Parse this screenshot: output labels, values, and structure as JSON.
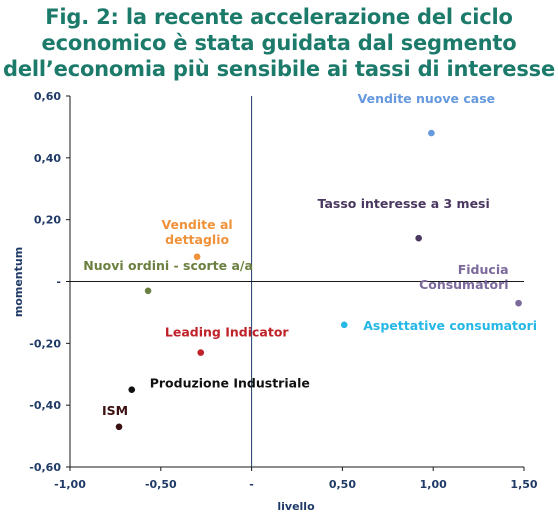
{
  "title_lines": [
    "Fig. 2: la recente accelerazione del ciclo",
    "economico è stata guidata dal segmento",
    "dell’economia più sensibile ai tassi di interesse"
  ],
  "chart_data": {
    "type": "scatter",
    "xlabel": "livello",
    "ylabel": "momentum",
    "xlim": [
      -1.0,
      1.5
    ],
    "ylim": [
      -0.6,
      0.6
    ],
    "x_ticks": [
      {
        "value": -1.0,
        "label": "-1,00"
      },
      {
        "value": -0.5,
        "label": "-0,50"
      },
      {
        "value": 0.0,
        "label": "-"
      },
      {
        "value": 0.5,
        "label": "0,50"
      },
      {
        "value": 1.0,
        "label": "1,00"
      },
      {
        "value": 1.5,
        "label": "1,50"
      }
    ],
    "y_ticks": [
      {
        "value": 0.6,
        "label": "0,60"
      },
      {
        "value": 0.4,
        "label": "0,40"
      },
      {
        "value": 0.2,
        "label": "0,20"
      },
      {
        "value": 0.0,
        "label": "-"
      },
      {
        "value": -0.2,
        "label": "-0,20"
      },
      {
        "value": -0.4,
        "label": "-0,40"
      },
      {
        "value": -0.6,
        "label": "-0,60"
      }
    ],
    "grid": false,
    "points": [
      {
        "name": "Vendite nuove case",
        "x": 0.99,
        "y": 0.48,
        "color": "#6699dd",
        "label_lines": [
          "Vendite nuove case"
        ],
        "anchor": "middle",
        "dx": -5,
        "dy": -30
      },
      {
        "name": "Tasso interesse a 3 mesi",
        "x": 0.92,
        "y": 0.14,
        "color": "#4a3860",
        "label_lines": [
          "Tasso interesse a 3 mesi"
        ],
        "anchor": "middle",
        "dx": -15,
        "dy": -30
      },
      {
        "name": "Fiducia Consumatori",
        "x": 1.47,
        "y": -0.07,
        "color": "#7c6a9c",
        "label_lines": [
          "Fiducia",
          "Consumatori"
        ],
        "anchor": "end",
        "dx": -10,
        "dy": -29
      },
      {
        "name": "Vendite al dettaglio",
        "x": -0.3,
        "y": 0.08,
        "color": "#f0923a",
        "label_lines": [
          "Vendite al",
          "dettaglio"
        ],
        "anchor": "middle",
        "dx": 0,
        "dy": -28
      },
      {
        "name": "Nuovi ordini - scorte a/a",
        "x": -0.57,
        "y": -0.03,
        "color": "#6b8040",
        "label_lines": [
          "Nuovi ordini - scorte a/a"
        ],
        "anchor": "middle",
        "dx": 20,
        "dy": -21
      },
      {
        "name": "Aspettative consumatori",
        "x": 0.51,
        "y": -0.14,
        "color": "#25b8e6",
        "label_lines": [
          "Aspettative consumatori"
        ],
        "anchor": "start",
        "dx": 19,
        "dy": 5
      },
      {
        "name": "Leading Indicator",
        "x": -0.28,
        "y": -0.23,
        "color": "#c0222a",
        "label_lines": [
          "Leading Indicator"
        ],
        "anchor": "middle",
        "dx": 26,
        "dy": -16
      },
      {
        "name": "Produzione Industriale",
        "x": -0.66,
        "y": -0.35,
        "color": "#111111",
        "label_lines": [
          "Produzione Industriale"
        ],
        "anchor": "start",
        "dx": 18,
        "dy": -2
      },
      {
        "name": "ISM",
        "x": -0.73,
        "y": -0.47,
        "color": "#3a1010",
        "label_lines": [
          "ISM"
        ],
        "anchor": "middle",
        "dx": -4,
        "dy": -12
      }
    ]
  }
}
